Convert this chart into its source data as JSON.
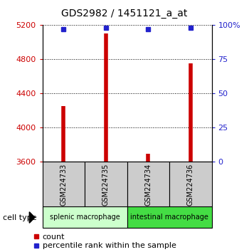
{
  "title": "GDS2982 / 1451121_a_at",
  "samples": [
    "GSM224733",
    "GSM224735",
    "GSM224734",
    "GSM224736"
  ],
  "counts": [
    4250,
    5100,
    3685,
    4750
  ],
  "percentiles": [
    97,
    98,
    97,
    98
  ],
  "baseline": 3600,
  "ylim_left": [
    3600,
    5200
  ],
  "ylim_right": [
    0,
    100
  ],
  "yticks_left": [
    3600,
    4000,
    4400,
    4800,
    5200
  ],
  "yticks_right": [
    0,
    25,
    50,
    75,
    100
  ],
  "bar_color": "#cc0000",
  "percentile_color": "#2222cc",
  "left_tick_color": "#cc0000",
  "right_tick_color": "#2222cc",
  "groups": [
    {
      "label": "splenic macrophage",
      "samples": [
        0,
        1
      ],
      "color": "#ccffcc"
    },
    {
      "label": "intestinal macrophage",
      "samples": [
        2,
        3
      ],
      "color": "#44dd44"
    }
  ],
  "sample_box_color": "#cccccc",
  "cell_type_label": "cell type",
  "legend_count_label": "count",
  "legend_percentile_label": "percentile rank within the sample",
  "title_fontsize": 10,
  "tick_fontsize": 8,
  "label_fontsize": 8,
  "group_label_fontsize": 7,
  "sample_fontsize": 7
}
